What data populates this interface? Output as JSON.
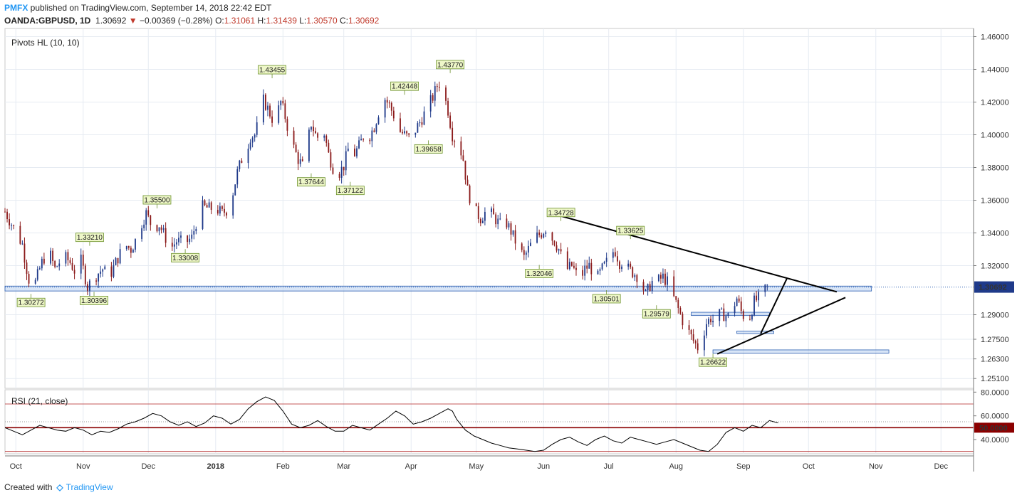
{
  "header": {
    "brand": "PMFX",
    "published": " published on TradingView.com, September 14, 2018 22:42 EDT",
    "symbol": "OANDA:GBPUSD, 1D",
    "last": "1.30692",
    "arrow": "▼",
    "change": "−0.00369 (−0.28%)",
    "o_label": "O:",
    "o": "1.31061",
    "h_label": "H:",
    "h": "1.31439",
    "l_label": "L:",
    "l": "1.30570",
    "c_label": "C:",
    "c": "1.30692"
  },
  "footer": {
    "created": "Created with",
    "logo": "◇",
    "brand": "TradingView"
  },
  "colors": {
    "bull": "#1f3a8a",
    "bear": "#8b1a1a",
    "grid": "#e6ebf2",
    "zone": "#b8cff0",
    "price_tag": "#1f3a8a",
    "rsi_mid_tag": "#8b0000",
    "pivot_fill": "#eef7c8",
    "pivot_border": "#6a8f2a"
  },
  "chart_data": [
    {
      "type": "candlestick",
      "title": "Pivots HL (10, 10)",
      "ylim": [
        1.245,
        1.465
      ],
      "y_ticks": [
        "1.46000",
        "1.44000",
        "1.42000",
        "1.40000",
        "1.38000",
        "1.36000",
        "1.34000",
        "1.32000",
        "1.30692",
        "1.29000",
        "1.27500",
        "1.26300",
        "1.25100"
      ],
      "y_tick_values": [
        1.46,
        1.44,
        1.42,
        1.4,
        1.38,
        1.36,
        1.34,
        1.32,
        1.30692,
        1.29,
        1.275,
        1.263,
        1.251
      ],
      "x_ticks": [
        "Oct",
        "Nov",
        "Dec",
        "2018",
        "Feb",
        "Mar",
        "Apr",
        "May",
        "Jun",
        "Jul",
        "Aug",
        "Sep",
        "Oct",
        "Nov",
        "Dec"
      ],
      "x_tick_days": [
        5,
        36,
        66,
        97,
        128,
        156,
        187,
        217,
        248,
        278,
        309,
        340,
        370,
        401,
        431
      ],
      "last_price": "1.30692",
      "close_path": [
        [
          0,
          1.353
        ],
        [
          4,
          1.343
        ],
        [
          8,
          1.333
        ],
        [
          10,
          1.318
        ],
        [
          12,
          1.305
        ],
        [
          14,
          1.31
        ],
        [
          17,
          1.322
        ],
        [
          20,
          1.33
        ],
        [
          23,
          1.318
        ],
        [
          27,
          1.326
        ],
        [
          30,
          1.322
        ],
        [
          32,
          1.317
        ],
        [
          34,
          1.328
        ],
        [
          36,
          1.318
        ],
        [
          38,
          1.307
        ],
        [
          41,
          1.313
        ],
        [
          45,
          1.318
        ],
        [
          48,
          1.313
        ],
        [
          51,
          1.322
        ],
        [
          55,
          1.333
        ],
        [
          58,
          1.33
        ],
        [
          61,
          1.338
        ],
        [
          63,
          1.346
        ],
        [
          65,
          1.352
        ],
        [
          68,
          1.343
        ],
        [
          71,
          1.345
        ],
        [
          74,
          1.337
        ],
        [
          76,
          1.33
        ],
        [
          79,
          1.335
        ],
        [
          83,
          1.334
        ],
        [
          86,
          1.337
        ],
        [
          88,
          1.346
        ],
        [
          91,
          1.356
        ],
        [
          94,
          1.355
        ],
        [
          97,
          1.355
        ],
        [
          100,
          1.352
        ],
        [
          103,
          1.355
        ],
        [
          105,
          1.365
        ],
        [
          107,
          1.377
        ],
        [
          109,
          1.385
        ],
        [
          111,
          1.39
        ],
        [
          113,
          1.399
        ],
        [
          115,
          1.4
        ],
        [
          117,
          1.409
        ],
        [
          119,
          1.421
        ],
        [
          121,
          1.416
        ],
        [
          124,
          1.407
        ],
        [
          127,
          1.42
        ],
        [
          129,
          1.411
        ],
        [
          131,
          1.4
        ],
        [
          133,
          1.392
        ],
        [
          135,
          1.385
        ],
        [
          137,
          1.381
        ],
        [
          139,
          1.393
        ],
        [
          141,
          1.407
        ],
        [
          143,
          1.4
        ],
        [
          145,
          1.397
        ],
        [
          147,
          1.401
        ],
        [
          149,
          1.388
        ],
        [
          152,
          1.376
        ],
        [
          154,
          1.377
        ],
        [
          156,
          1.381
        ],
        [
          158,
          1.391
        ],
        [
          160,
          1.386
        ],
        [
          163,
          1.393
        ],
        [
          165,
          1.399
        ],
        [
          167,
          1.397
        ],
        [
          170,
          1.405
        ],
        [
          173,
          1.418
        ],
        [
          175,
          1.422
        ],
        [
          177,
          1.418
        ],
        [
          180,
          1.409
        ],
        [
          182,
          1.402
        ],
        [
          184,
          1.4
        ],
        [
          186,
          1.398
        ],
        [
          189,
          1.403
        ],
        [
          192,
          1.41
        ],
        [
          195,
          1.418
        ],
        [
          197,
          1.423
        ],
        [
          199,
          1.43
        ],
        [
          201,
          1.433
        ],
        [
          202,
          1.425
        ],
        [
          204,
          1.415
        ],
        [
          206,
          1.4
        ],
        [
          209,
          1.394
        ],
        [
          211,
          1.385
        ],
        [
          213,
          1.366
        ],
        [
          216,
          1.354
        ],
        [
          219,
          1.349
        ],
        [
          222,
          1.354
        ],
        [
          225,
          1.35
        ],
        [
          228,
          1.345
        ],
        [
          231,
          1.346
        ],
        [
          233,
          1.341
        ],
        [
          235,
          1.335
        ],
        [
          237,
          1.33
        ],
        [
          239,
          1.325
        ],
        [
          241,
          1.33
        ],
        [
          243,
          1.335
        ],
        [
          245,
          1.338
        ],
        [
          247,
          1.34
        ],
        [
          249,
          1.343
        ],
        [
          251,
          1.338
        ],
        [
          253,
          1.335
        ],
        [
          255,
          1.33
        ],
        [
          257,
          1.322
        ],
        [
          259,
          1.318
        ],
        [
          261,
          1.32
        ],
        [
          263,
          1.315
        ],
        [
          265,
          1.312
        ],
        [
          267,
          1.318
        ],
        [
          269,
          1.32
        ],
        [
          271,
          1.316
        ],
        [
          273,
          1.313
        ],
        [
          275,
          1.318
        ],
        [
          277,
          1.322
        ],
        [
          279,
          1.328
        ],
        [
          281,
          1.329
        ],
        [
          283,
          1.322
        ],
        [
          285,
          1.323
        ],
        [
          287,
          1.318
        ],
        [
          289,
          1.316
        ],
        [
          291,
          1.314
        ],
        [
          293,
          1.31
        ],
        [
          295,
          1.302
        ],
        [
          297,
          1.308
        ],
        [
          299,
          1.312
        ],
        [
          301,
          1.311
        ],
        [
          303,
          1.313
        ],
        [
          305,
          1.31
        ],
        [
          307,
          1.303
        ],
        [
          309,
          1.297
        ],
        [
          311,
          1.29
        ],
        [
          313,
          1.283
        ],
        [
          315,
          1.279
        ],
        [
          317,
          1.274
        ],
        [
          319,
          1.27
        ],
        [
          321,
          1.276
        ],
        [
          323,
          1.285
        ],
        [
          325,
          1.288
        ],
        [
          327,
          1.285
        ],
        [
          329,
          1.29
        ],
        [
          331,
          1.29
        ],
        [
          333,
          1.289
        ],
        [
          335,
          1.294
        ],
        [
          337,
          1.3
        ],
        [
          339,
          1.292
        ],
        [
          341,
          1.287
        ],
        [
          343,
          1.289
        ],
        [
          345,
          1.298
        ],
        [
          347,
          1.3
        ],
        [
          349,
          1.303
        ],
        [
          351,
          1.307
        ]
      ],
      "pivots": [
        {
          "label": "1.30272",
          "day": 12,
          "value": 1.30272,
          "dir": "low"
        },
        {
          "label": "1.33210",
          "day": 39,
          "value": 1.3321,
          "dir": "high"
        },
        {
          "label": "1.30396",
          "day": 41,
          "value": 1.30396,
          "dir": "low"
        },
        {
          "label": "1.35500",
          "day": 70,
          "value": 1.355,
          "dir": "high"
        },
        {
          "label": "1.33008",
          "day": 83,
          "value": 1.33008,
          "dir": "low"
        },
        {
          "label": "1.43455",
          "day": 123,
          "value": 1.43455,
          "dir": "high"
        },
        {
          "label": "1.37644",
          "day": 141,
          "value": 1.37644,
          "dir": "low"
        },
        {
          "label": "1.37122",
          "day": 159,
          "value": 1.37122,
          "dir": "low"
        },
        {
          "label": "1.42448",
          "day": 184,
          "value": 1.42448,
          "dir": "high"
        },
        {
          "label": "1.39658",
          "day": 195,
          "value": 1.39658,
          "dir": "low"
        },
        {
          "label": "1.43770",
          "day": 205,
          "value": 1.4377,
          "dir": "high"
        },
        {
          "label": "1.34728",
          "day": 256,
          "value": 1.34728,
          "dir": "high"
        },
        {
          "label": "1.32046",
          "day": 246,
          "value": 1.32046,
          "dir": "low"
        },
        {
          "label": "1.33625",
          "day": 288,
          "value": 1.33625,
          "dir": "high"
        },
        {
          "label": "1.30501",
          "day": 277,
          "value": 1.30501,
          "dir": "low"
        },
        {
          "label": "1.29579",
          "day": 300,
          "value": 1.29579,
          "dir": "low"
        },
        {
          "label": "1.26622",
          "day": 326,
          "value": 1.26622,
          "dir": "low"
        }
      ],
      "zones": [
        {
          "d0": 0,
          "d1": 399,
          "v0": 1.3045,
          "v1": 1.3075
        },
        {
          "d0": 316,
          "d1": 352,
          "v0": 1.2895,
          "v1": 1.2915
        },
        {
          "d0": 337,
          "d1": 354,
          "v0": 1.2785,
          "v1": 1.28
        },
        {
          "d0": 326,
          "d1": 407,
          "v0": 1.2665,
          "v1": 1.2685
        }
      ],
      "trendlines": [
        {
          "d0": 250,
          "v0": 1.3525,
          "d1": 383,
          "v1": 1.304
        },
        {
          "d0": 328,
          "v0": 1.266,
          "d1": 387,
          "v1": 1.3005
        },
        {
          "d0": 348,
          "v0": 1.2785,
          "d1": 360,
          "v1": 1.312
        }
      ]
    },
    {
      "type": "line",
      "title": "RSI (21, close)",
      "ylim": [
        28,
        82
      ],
      "y_ticks": [
        "80.0000",
        "60.0000",
        "50.0000",
        "40.0000"
      ],
      "y_tick_values": [
        80,
        60,
        50,
        40
      ],
      "bands": [
        70,
        30
      ],
      "midline": 50,
      "guide": 55,
      "series": [
        {
          "name": "RSI",
          "x": [
            0,
            4,
            8,
            12,
            16,
            20,
            24,
            28,
            32,
            36,
            40,
            44,
            48,
            52,
            56,
            60,
            64,
            68,
            72,
            76,
            80,
            84,
            88,
            92,
            96,
            100,
            104,
            108,
            112,
            116,
            120,
            124,
            128,
            132,
            136,
            140,
            144,
            148,
            152,
            156,
            160,
            164,
            168,
            172,
            176,
            180,
            184,
            188,
            192,
            196,
            200,
            204,
            206,
            208,
            212,
            216,
            220,
            224,
            228,
            232,
            236,
            240,
            244,
            248,
            252,
            256,
            260,
            264,
            268,
            272,
            276,
            280,
            284,
            288,
            292,
            296,
            300,
            304,
            308,
            312,
            316,
            320,
            324,
            328,
            332,
            336,
            340,
            344,
            348,
            352,
            356
          ],
          "y": [
            50,
            47,
            44,
            48,
            52,
            50,
            48,
            47,
            50,
            48,
            44,
            47,
            46,
            49,
            53,
            55,
            58,
            62,
            60,
            55,
            52,
            55,
            51,
            54,
            60,
            58,
            53,
            57,
            66,
            72,
            76,
            73,
            64,
            53,
            50,
            52,
            56,
            51,
            47,
            47,
            52,
            50,
            48,
            53,
            58,
            64,
            60,
            53,
            55,
            58,
            62,
            66,
            64,
            57,
            48,
            43,
            40,
            37,
            35,
            33,
            32,
            31,
            30,
            31,
            36,
            40,
            42,
            38,
            35,
            40,
            43,
            39,
            37,
            42,
            40,
            38,
            36,
            38,
            40,
            37,
            34,
            31,
            30,
            36,
            46,
            50,
            47,
            52,
            50,
            56,
            54
          ]
        }
      ]
    }
  ]
}
